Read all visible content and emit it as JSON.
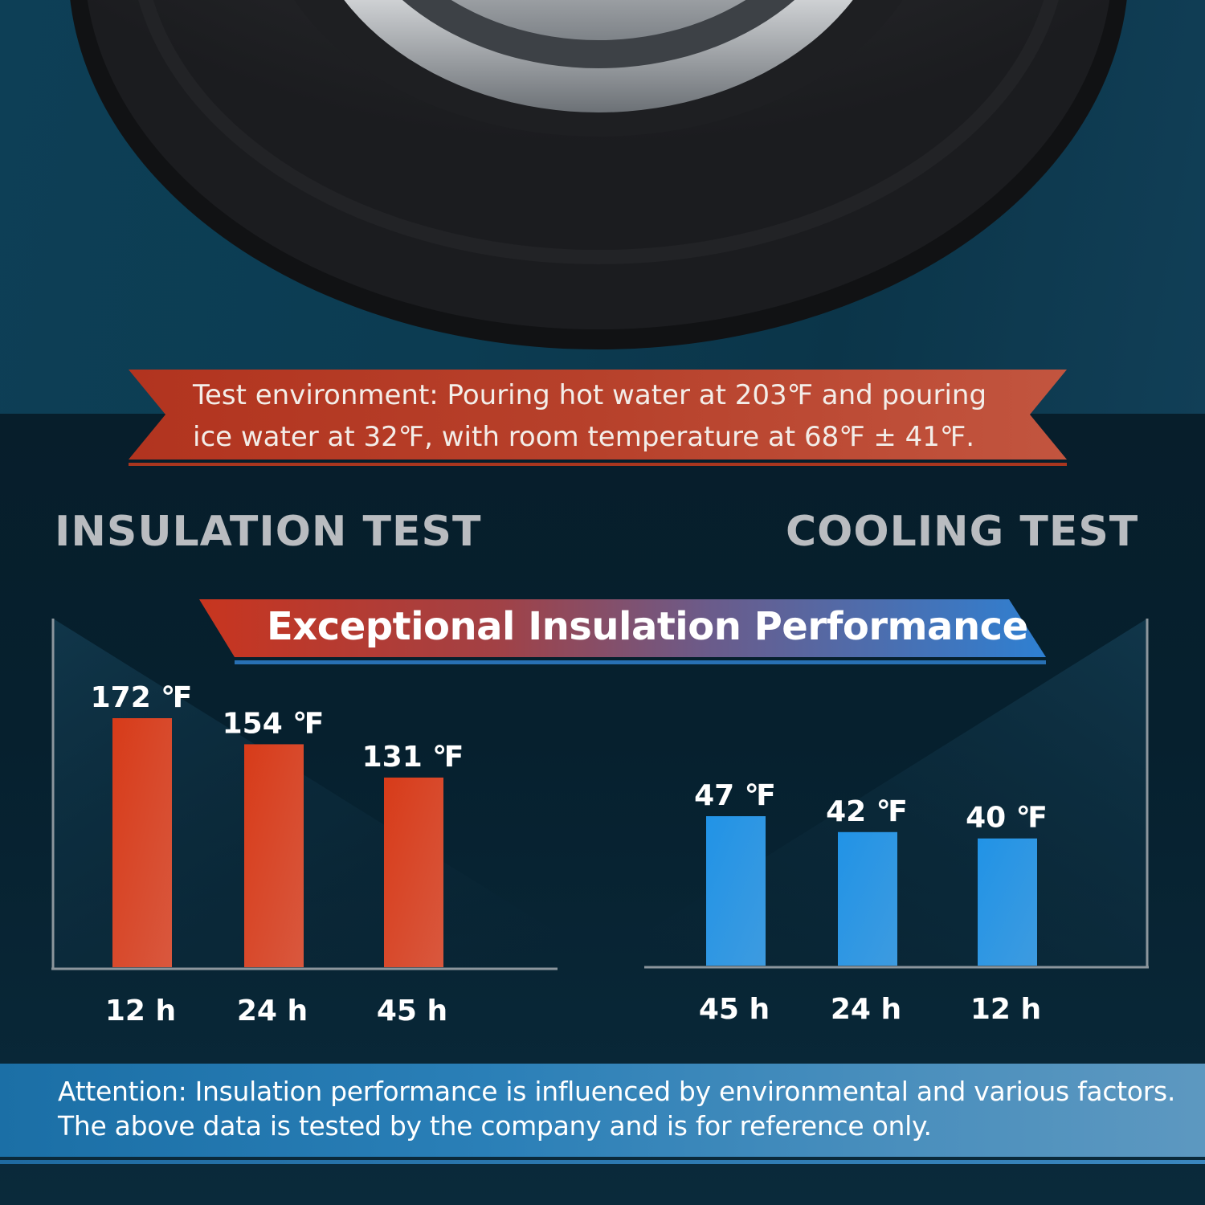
{
  "environment_note": "Test environment: Pouring hot water at 203℉ and pouring ice water at 32℉, with room temperature at 68℉ ± 41℉.",
  "banner_title": "Exceptional Insulation Performance",
  "attention_note": "Attention: Insulation performance is influenced by environmental and various factors. The above data is tested by the company and is for reference only.",
  "colors": {
    "hot": "#d3431f",
    "cold": "#2a93e0",
    "ribbon_red": "#b83a24",
    "ribbon_blue": "#2d7fd0"
  },
  "chart_data": [
    {
      "type": "bar",
      "title": "INSULATION TEST",
      "categories": [
        "12 h",
        "24 h",
        "45 h"
      ],
      "values": [
        172,
        154,
        131
      ],
      "value_labels": [
        "172 ℉",
        "154 ℉",
        "131 ℉"
      ],
      "unit": "℉",
      "xlabel": "",
      "ylabel": "",
      "ylim": [
        0,
        180
      ],
      "grid": false,
      "color": "#d3431f"
    },
    {
      "type": "bar",
      "title": "COOLING TEST",
      "categories": [
        "45 h",
        "24 h",
        "12 h"
      ],
      "values": [
        47,
        42,
        40
      ],
      "value_labels": [
        "47 ℉",
        "42 ℉",
        "40 ℉"
      ],
      "unit": "℉",
      "xlabel": "",
      "ylabel": "",
      "ylim": [
        0,
        60
      ],
      "grid": false,
      "color": "#2a93e0"
    }
  ]
}
